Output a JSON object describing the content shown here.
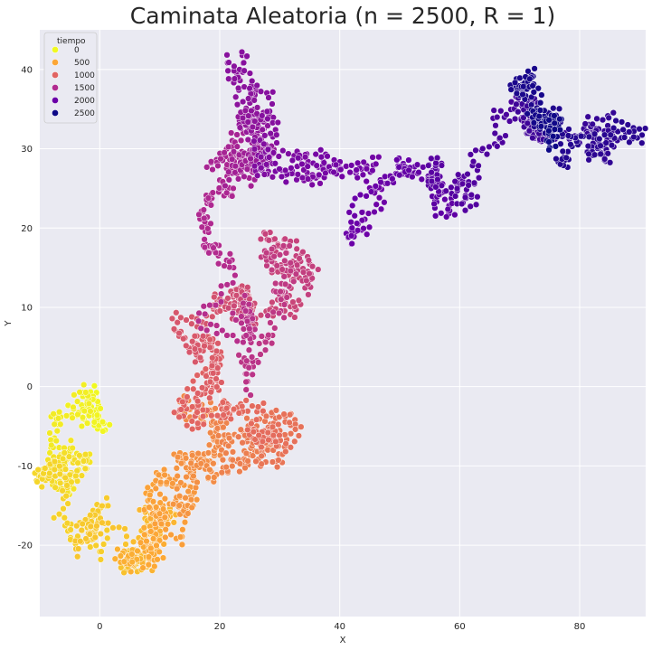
{
  "chart_data": {
    "type": "scatter",
    "title": "Caminata Aleatoria (n = 2500, R = 1)",
    "xlabel": "X",
    "ylabel": "Y",
    "xlim": [
      -10,
      91
    ],
    "ylim": [
      -29,
      45
    ],
    "x_ticks": [
      0,
      20,
      40,
      60,
      80
    ],
    "y_ticks": [
      -20,
      -10,
      0,
      10,
      20,
      30,
      40
    ],
    "grid": true,
    "background": "#eaeaf2",
    "legend": {
      "title": "tiempo",
      "placement": "top-left",
      "entries": [
        {
          "label": "0",
          "color": "#f0f921"
        },
        {
          "label": "500",
          "color": "#fca636"
        },
        {
          "label": "1000",
          "color": "#e16462"
        },
        {
          "label": "1500",
          "color": "#b12a90"
        },
        {
          "label": "2000",
          "color": "#6a00a8"
        },
        {
          "label": "2500",
          "color": "#0d0887"
        }
      ]
    },
    "color_scale": [
      "#f0f921",
      "#fca636",
      "#e16462",
      "#b12a90",
      "#6a00a8",
      "#0d0887"
    ],
    "path_waypoints": [
      {
        "t": 0,
        "x": 0,
        "y": 0
      },
      {
        "t": 60,
        "x": -1,
        "y": -5
      },
      {
        "t": 120,
        "x": -1,
        "y": -9
      },
      {
        "t": 180,
        "x": -2,
        "y": -13
      },
      {
        "t": 230,
        "x": -4,
        "y": -16
      },
      {
        "t": 270,
        "x": 0,
        "y": -15
      },
      {
        "t": 320,
        "x": 4,
        "y": -17
      },
      {
        "t": 360,
        "x": 6,
        "y": -20
      },
      {
        "t": 420,
        "x": 8,
        "y": -23
      },
      {
        "t": 470,
        "x": 9,
        "y": -20
      },
      {
        "t": 520,
        "x": 10,
        "y": -14
      },
      {
        "t": 580,
        "x": 11,
        "y": -10
      },
      {
        "t": 640,
        "x": 15,
        "y": -7
      },
      {
        "t": 700,
        "x": 18,
        "y": -6
      },
      {
        "t": 760,
        "x": 22,
        "y": -5
      },
      {
        "t": 820,
        "x": 26,
        "y": -7
      },
      {
        "t": 870,
        "x": 30,
        "y": -9
      },
      {
        "t": 910,
        "x": 27,
        "y": -4
      },
      {
        "t": 960,
        "x": 24,
        "y": 0
      },
      {
        "t": 1020,
        "x": 20,
        "y": 3
      },
      {
        "t": 1080,
        "x": 17,
        "y": 6
      },
      {
        "t": 1140,
        "x": 20,
        "y": 10
      },
      {
        "t": 1200,
        "x": 24,
        "y": 12
      },
      {
        "t": 1260,
        "x": 28,
        "y": 16
      },
      {
        "t": 1310,
        "x": 32,
        "y": 14
      },
      {
        "t": 1360,
        "x": 28,
        "y": 10
      },
      {
        "t": 1420,
        "x": 23,
        "y": 11
      },
      {
        "t": 1470,
        "x": 21,
        "y": 16
      },
      {
        "t": 1520,
        "x": 18,
        "y": 22
      },
      {
        "t": 1570,
        "x": 16,
        "y": 28
      },
      {
        "t": 1620,
        "x": 21,
        "y": 30
      },
      {
        "t": 1660,
        "x": 24,
        "y": 28
      },
      {
        "t": 1710,
        "x": 23,
        "y": 35
      },
      {
        "t": 1760,
        "x": 26,
        "y": 38
      },
      {
        "t": 1810,
        "x": 30,
        "y": 34
      },
      {
        "t": 1860,
        "x": 36,
        "y": 29
      },
      {
        "t": 1910,
        "x": 39,
        "y": 25
      },
      {
        "t": 1960,
        "x": 45,
        "y": 26
      },
      {
        "t": 2010,
        "x": 51,
        "y": 27
      },
      {
        "t": 2060,
        "x": 58,
        "y": 25
      },
      {
        "t": 2110,
        "x": 61,
        "y": 28
      },
      {
        "t": 2160,
        "x": 66,
        "y": 35
      },
      {
        "t": 2210,
        "x": 71,
        "y": 34
      },
      {
        "t": 2260,
        "x": 79,
        "y": 31
      },
      {
        "t": 2310,
        "x": 83,
        "y": 33
      },
      {
        "t": 2360,
        "x": 75,
        "y": 32
      },
      {
        "t": 2410,
        "x": 69,
        "y": 38
      },
      {
        "t": 2460,
        "x": 73,
        "y": 36
      },
      {
        "t": 2500,
        "x": 75,
        "y": 27
      }
    ]
  }
}
